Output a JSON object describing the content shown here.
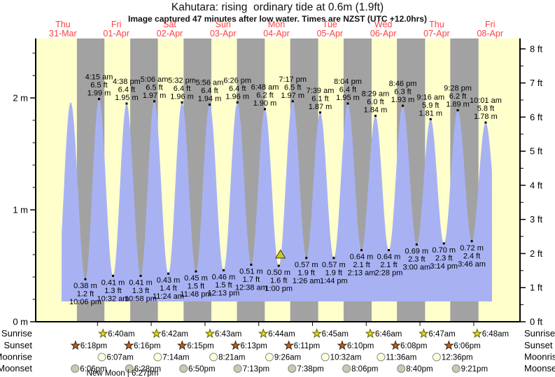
{
  "page": {
    "title": "Kahutara: rising  ordinary tide at 0.6m (1.9ft)",
    "subtitle": "Image captured 47 minutes after low water. Times are NZST (UTC +12.0hrs)"
  },
  "chart_data": {
    "type": "area",
    "title": "Kahutara: rising  ordinary tide at 0.6m (1.9ft)",
    "subtitle": "Image captured 47 minutes after low water. Times are NZST (UTC +12.0hrs)",
    "days": [
      {
        "weekday": "Thu",
        "date": "31-Mar"
      },
      {
        "weekday": "Fri",
        "date": "01-Apr"
      },
      {
        "weekday": "Sat",
        "date": "02-Apr"
      },
      {
        "weekday": "Sun",
        "date": "03-Apr"
      },
      {
        "weekday": "Mon",
        "date": "04-Apr"
      },
      {
        "weekday": "Tue",
        "date": "05-Apr"
      },
      {
        "weekday": "Wed",
        "date": "06-Apr"
      },
      {
        "weekday": "Thu",
        "date": "07-Apr"
      },
      {
        "weekday": "Fri",
        "date": "08-Apr"
      }
    ],
    "y_axis_left": {
      "labels": [
        {
          "text": "2 m",
          "value": 2
        },
        {
          "text": "1 m",
          "value": 1
        },
        {
          "text": "0 m",
          "value": 0
        }
      ],
      "minor_step": 0.2,
      "minor_max": 2.4
    },
    "y_axis_right": {
      "unit": "ft",
      "major_values": [
        0,
        1,
        2,
        3,
        4,
        5,
        6,
        7,
        8
      ],
      "minor_step": 0.5
    },
    "tide_events": [
      {
        "type": "H",
        "t": 0.6458,
        "height_m": 1.96,
        "labeled": false
      },
      {
        "type": "L",
        "t": 0.9208,
        "height_m": 0.38,
        "labeled": true,
        "m": "0.38 m",
        "ft": "1.2 ft",
        "time": "10:06 pm"
      },
      {
        "type": "H",
        "t": 1.1771,
        "height_m": 1.99,
        "labeled": true,
        "time": "4:15 am",
        "ft": "6.5 ft",
        "m": "1.99 m"
      },
      {
        "type": "L",
        "t": 1.4389,
        "height_m": 0.41,
        "labeled": true,
        "m": "0.41 m",
        "ft": "1.3 ft",
        "time": "10:32 am"
      },
      {
        "type": "H",
        "t": 1.6931,
        "height_m": 1.95,
        "labeled": true,
        "time": "4:38 pm",
        "ft": "6.4 ft",
        "m": "1.95 m"
      },
      {
        "type": "L",
        "t": 1.9569,
        "height_m": 0.41,
        "labeled": true,
        "m": "0.41 m",
        "ft": "1.3 ft",
        "time": "10:58 pm"
      },
      {
        "type": "H",
        "t": 2.2125,
        "height_m": 1.97,
        "labeled": true,
        "time": "5:06 am",
        "ft": "6.5 ft",
        "m": "1.97 m"
      },
      {
        "type": "L",
        "t": 2.475,
        "height_m": 0.43,
        "labeled": true,
        "m": "0.43 m",
        "ft": "1.4 ft",
        "time": "11:24 am"
      },
      {
        "type": "H",
        "t": 2.7306,
        "height_m": 1.96,
        "labeled": true,
        "time": "5:32 pm",
        "ft": "6.4 ft",
        "m": "1.96 m"
      },
      {
        "type": "L",
        "t": 2.9917,
        "height_m": 0.45,
        "labeled": true,
        "m": "0.45 m",
        "ft": "1.5 ft",
        "time": "11:48 pm"
      },
      {
        "type": "H",
        "t": 3.2472,
        "height_m": 1.94,
        "labeled": true,
        "time": "5:56 am",
        "ft": "6.4 ft",
        "m": "1.94 m"
      },
      {
        "type": "L",
        "t": 3.509,
        "height_m": 0.46,
        "labeled": true,
        "m": "0.46 m",
        "ft": "1.5 ft",
        "time": "12:13 pm"
      },
      {
        "type": "H",
        "t": 3.7681,
        "height_m": 1.96,
        "labeled": true,
        "time": "6:26 pm",
        "ft": "6.4 ft",
        "m": "1.96 m"
      },
      {
        "type": "L",
        "t": 4.0264,
        "height_m": 0.51,
        "labeled": true,
        "m": "0.51 m",
        "ft": "1.7 ft",
        "time": "12:38 am"
      },
      {
        "type": "H",
        "t": 4.2833,
        "height_m": 1.9,
        "labeled": true,
        "time": "6:48 am",
        "ft": "6.2 ft",
        "m": "1.90 m"
      },
      {
        "type": "L",
        "t": 4.5417,
        "height_m": 0.5,
        "labeled": true,
        "m": "0.50 m",
        "ft": "1.6 ft",
        "time": "1:00 pm"
      },
      {
        "type": "H",
        "t": 4.8035,
        "height_m": 1.97,
        "labeled": true,
        "time": "7:17 pm",
        "ft": "6.5 ft",
        "m": "1.97 m"
      },
      {
        "type": "L",
        "t": 5.0597,
        "height_m": 0.57,
        "labeled": true,
        "m": "0.57 m",
        "ft": "1.9 ft",
        "time": "1:26 am"
      },
      {
        "type": "H",
        "t": 5.3188,
        "height_m": 1.87,
        "labeled": true,
        "time": "7:39 am",
        "ft": "6.1 ft",
        "m": "1.87 m"
      },
      {
        "type": "L",
        "t": 5.5722,
        "height_m": 0.57,
        "labeled": true,
        "m": "0.57 m",
        "ft": "1.9 ft",
        "time": "1:44 pm"
      },
      {
        "type": "H",
        "t": 5.8361,
        "height_m": 1.95,
        "labeled": true,
        "time": "8:04 pm",
        "ft": "6.4 ft",
        "m": "1.95 m"
      },
      {
        "type": "L",
        "t": 6.0924,
        "height_m": 0.64,
        "labeled": true,
        "m": "0.64 m",
        "ft": "2.1 ft",
        "time": "2:13 am"
      },
      {
        "type": "H",
        "t": 6.3535,
        "height_m": 1.84,
        "labeled": true,
        "time": "8:29 am",
        "ft": "6.0 ft",
        "m": "1.84 m"
      },
      {
        "type": "L",
        "t": 6.6028,
        "height_m": 0.64,
        "labeled": true,
        "m": "0.64 m",
        "ft": "2.1 ft",
        "time": "2:28 pm"
      },
      {
        "type": "H",
        "t": 6.8653,
        "height_m": 1.93,
        "labeled": true,
        "time": "8:46 pm",
        "ft": "6.3 ft",
        "m": "1.93 m"
      },
      {
        "type": "L",
        "t": 7.125,
        "height_m": 0.69,
        "labeled": true,
        "m": "0.69 m",
        "ft": "2.3 ft",
        "time": "3:00 am"
      },
      {
        "type": "H",
        "t": 7.3861,
        "height_m": 1.81,
        "labeled": true,
        "time": "9:16 am",
        "ft": "5.9 ft",
        "m": "1.81 m"
      },
      {
        "type": "L",
        "t": 7.6347,
        "height_m": 0.7,
        "labeled": true,
        "m": "0.70 m",
        "ft": "2.3 ft",
        "time": "3:14 pm"
      },
      {
        "type": "H",
        "t": 7.8944,
        "height_m": 1.89,
        "labeled": true,
        "time": "9:28 pm",
        "ft": "6.2 ft",
        "m": "1.89 m"
      },
      {
        "type": "L",
        "t": 8.1569,
        "height_m": 0.72,
        "labeled": true,
        "m": "0.72 m",
        "ft": "2.4 ft",
        "time": "3:46 am"
      },
      {
        "type": "H",
        "t": 8.4174,
        "height_m": 1.78,
        "labeled": true,
        "time": "10:01 am",
        "ft": "5.8 ft",
        "m": "1.78 m"
      }
    ],
    "current_marker": {
      "t": 4.5743,
      "height_m": 0.6
    },
    "astro": {
      "row_labels": [
        "Sunrise",
        "Sunset",
        "Moonrise",
        "Moonset"
      ],
      "sunrise": [
        {
          "day": 1,
          "time": "6:40am"
        },
        {
          "day": 2,
          "time": "6:42am"
        },
        {
          "day": 3,
          "time": "6:43am"
        },
        {
          "day": 4,
          "time": "6:44am"
        },
        {
          "day": 5,
          "time": "6:45am"
        },
        {
          "day": 6,
          "time": "6:46am"
        },
        {
          "day": 7,
          "time": "6:47am"
        },
        {
          "day": 8,
          "time": "6:48am"
        }
      ],
      "sunset": [
        {
          "day": 0,
          "time": "6:18pm"
        },
        {
          "day": 1,
          "time": "6:16pm"
        },
        {
          "day": 2,
          "time": "6:15pm"
        },
        {
          "day": 3,
          "time": "6:13pm"
        },
        {
          "day": 4,
          "time": "6:11pm"
        },
        {
          "day": 5,
          "time": "6:10pm"
        },
        {
          "day": 6,
          "time": "6:08pm"
        },
        {
          "day": 7,
          "time": "6:06pm"
        }
      ],
      "moonrise": [
        {
          "day": 1,
          "time": "6:07am"
        },
        {
          "day": 2,
          "time": "7:14am"
        },
        {
          "day": 3,
          "time": "8:21am"
        },
        {
          "day": 4,
          "time": "9:26am"
        },
        {
          "day": 5,
          "time": "10:32am"
        },
        {
          "day": 6,
          "time": "11:36am"
        },
        {
          "day": 7,
          "time": "12:36pm"
        }
      ],
      "moonset": [
        {
          "day": 0,
          "time": "6:06pm"
        },
        {
          "day": 1,
          "time": "6:28pm"
        },
        {
          "day": 2,
          "time": "6:50pm"
        },
        {
          "day": 3,
          "time": "7:13pm"
        },
        {
          "day": 4,
          "time": "7:38pm"
        },
        {
          "day": 5,
          "time": "8:06pm"
        },
        {
          "day": 6,
          "time": "8:40pm"
        },
        {
          "day": 7,
          "time": "9:21pm"
        }
      ],
      "new_moon": "New Moon | 6:27pm"
    },
    "colors": {
      "day_band": "#ffffcc",
      "night_band": "#a2a2a2",
      "tide_fill": "#a8b2f3",
      "date_text": "#ff4040",
      "sunrise_star": "#d9d918",
      "sunset_star": "#b5622d",
      "moonrise_circle": "#ffffdc",
      "moonset_circle": "#c9c9ad",
      "marker": "#c9c926",
      "axis": "#000000"
    }
  }
}
